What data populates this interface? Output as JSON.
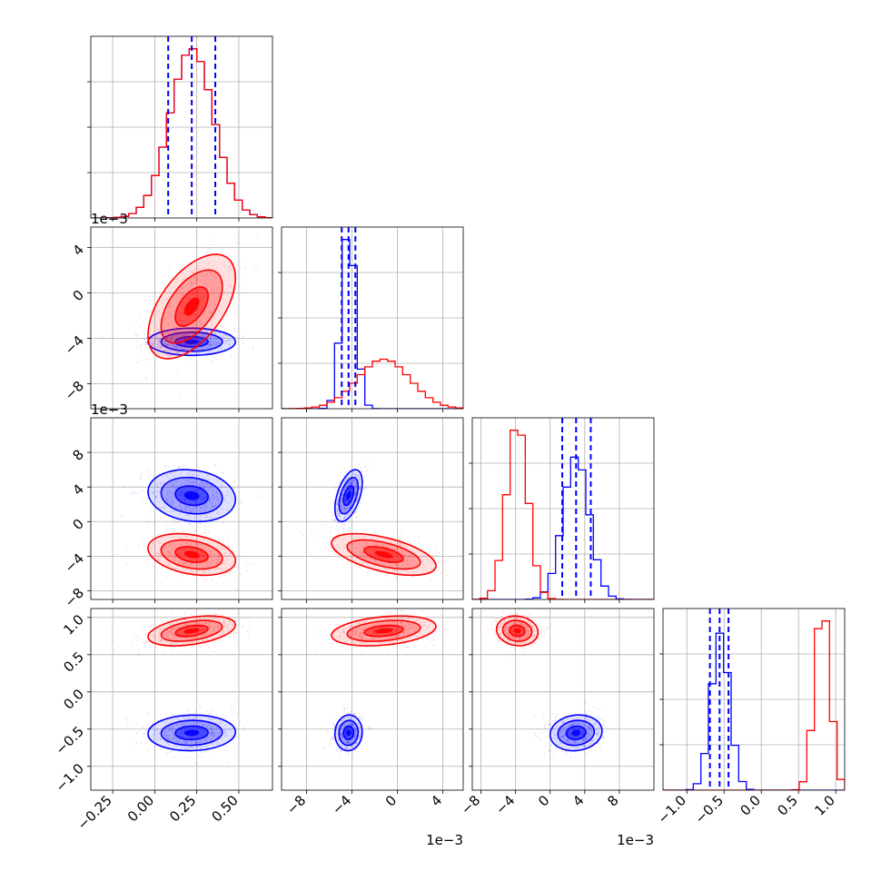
{
  "chart_data": {
    "type": "corner",
    "title": "",
    "colors": {
      "series_a": "#0000ff",
      "series_b": "#ff0000",
      "grid": "#b0b0b0"
    },
    "grid": true,
    "legend": "none",
    "parameters": [
      {
        "range": [
          -0.38,
          0.7
        ],
        "ticks": [
          -0.25,
          0.0,
          0.25,
          0.5
        ],
        "tick_labels": [
          "−0.25",
          "0.00",
          "0.25",
          "0.50"
        ],
        "offset_label": ""
      },
      {
        "range": [
          -10.2,
          5.8
        ],
        "ticks": [
          -8,
          -4,
          0,
          4
        ],
        "tick_labels": [
          "−8",
          "−4",
          "0",
          "4"
        ],
        "offset_label": "1e−3"
      },
      {
        "range": [
          -9,
          12
        ],
        "ticks": [
          -8,
          -4,
          0,
          4,
          8
        ],
        "tick_labels": [
          "−8",
          "−4",
          "0",
          "4",
          "8"
        ],
        "offset_label": "1e−3"
      },
      {
        "range": [
          -1.32,
          1.12
        ],
        "ticks": [
          -1.0,
          -0.5,
          0.0,
          0.5,
          1.0
        ],
        "tick_labels": [
          "−1.0",
          "−0.5",
          "0.0",
          "0.5",
          "1.0"
        ],
        "offset_label": ""
      }
    ],
    "series": [
      {
        "name": "",
        "color": "#0000ff",
        "mean": [
          0.22,
          -4.3,
          3.0,
          -0.55
        ],
        "std": [
          0.13,
          0.6,
          1.5,
          0.12
        ],
        "quantiles": [
          [
            0.08,
            0.22,
            0.36
          ],
          [
            -4.9,
            -4.3,
            -3.7
          ],
          [
            1.4,
            3.0,
            4.7
          ],
          [
            -0.69,
            -0.56,
            -0.44
          ]
        ],
        "corr": [
          [
            0,
            1,
            0
          ],
          [
            0,
            2,
            -0.15
          ],
          [
            1,
            2,
            0.5
          ],
          [
            0,
            3,
            0.05
          ],
          [
            1,
            3,
            0.05
          ],
          [
            2,
            3,
            0.1
          ]
        ]
      },
      {
        "name": "",
        "color": "#ff0000",
        "mean": [
          0.22,
          -1.2,
          -3.8,
          0.82
        ],
        "std": [
          0.13,
          2.3,
          1.2,
          0.1
        ],
        "quantiles": [],
        "corr": [
          [
            0,
            1,
            0.55
          ],
          [
            0,
            2,
            -0.3
          ],
          [
            1,
            2,
            -0.55
          ],
          [
            0,
            3,
            0.4
          ],
          [
            1,
            3,
            0.3
          ],
          [
            2,
            3,
            -0.1
          ]
        ]
      }
    ]
  }
}
